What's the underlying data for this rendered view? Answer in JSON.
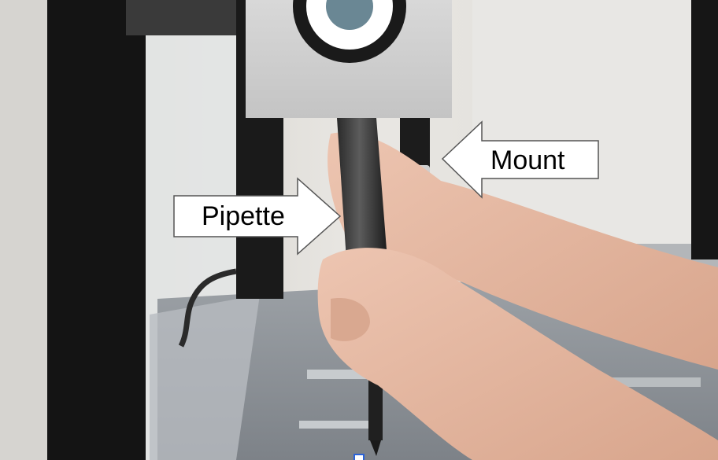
{
  "image": {
    "callouts": [
      {
        "label": "Pipette",
        "direction": "right"
      },
      {
        "label": "Mount",
        "direction": "left"
      }
    ],
    "colors": {
      "callout_fill": "#ffffff",
      "callout_stroke": "#555555",
      "label_text": "#000000",
      "frame": "#141414",
      "housing": "#d4d4d4",
      "skin": "#e2b49c",
      "selection_handle": "#2a62d8"
    }
  }
}
